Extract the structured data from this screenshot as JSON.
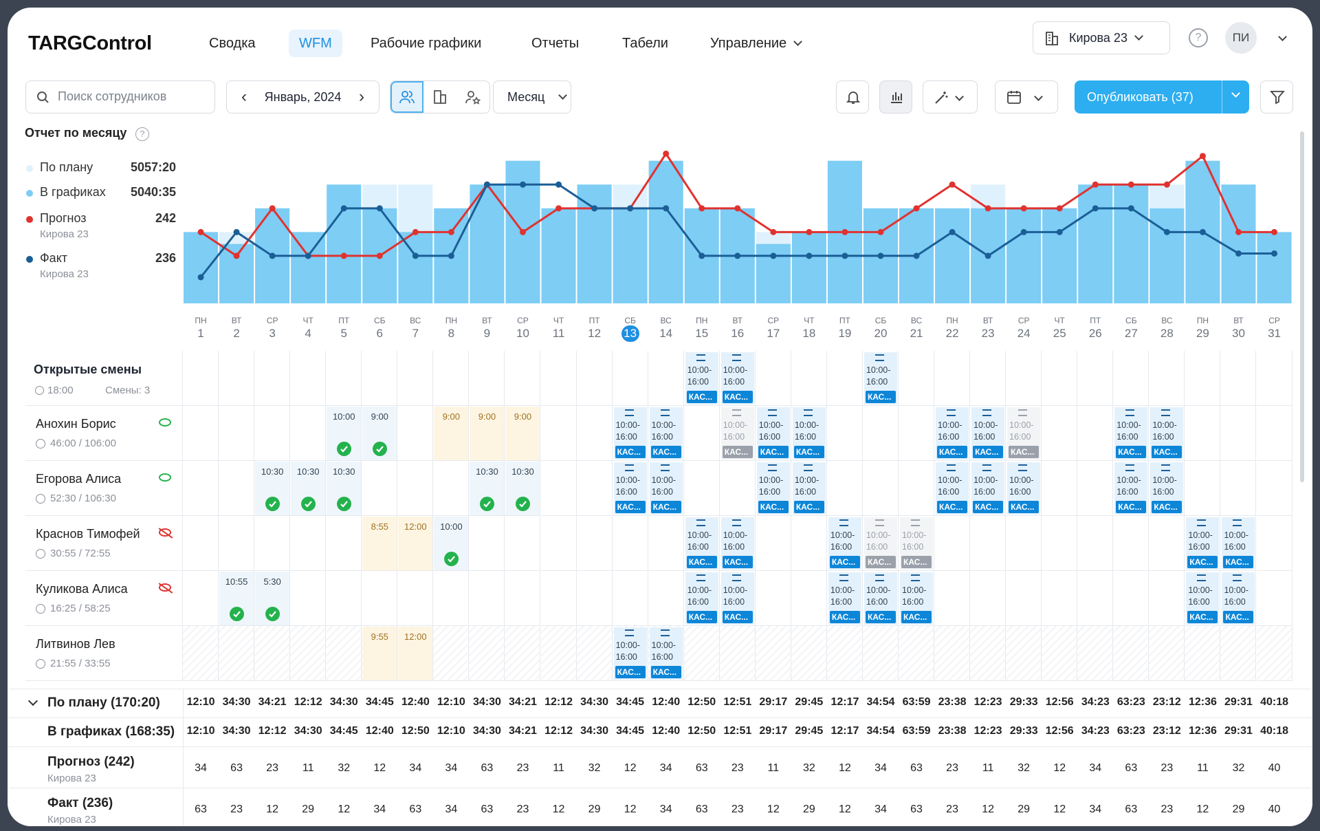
{
  "brand": "TARGControl",
  "nav": [
    "Сводка",
    "WFM",
    "Рабочие графики",
    "Отчеты",
    "Табели",
    "Управление"
  ],
  "store": "Кирова 23",
  "avatar": "ПИ",
  "search": {
    "placeholder": "Поиск сотрудников"
  },
  "month": "Январь, 2024",
  "period": "Месяц",
  "publish": "Опубликовать (37)",
  "legend": {
    "title": "Отчет по месяцу",
    "plan_label": "По плану",
    "plan_value": "5057:20",
    "sched_label": "В графиках",
    "sched_value": "5040:35",
    "forecast_label": "Прогноз",
    "forecast_value": "242",
    "forecast_sub": "Кирова 23",
    "fact_label": "Факт",
    "fact_value": "236",
    "fact_sub": "Кирова 23"
  },
  "colors": {
    "accent": "#2daef0",
    "forecast": "#e0322f",
    "fact": "#1b5e96",
    "bar": "#7dcdf5",
    "bar_light": "#dff1fc"
  },
  "chart_data": {
    "type": "bar",
    "x": [
      1,
      2,
      3,
      4,
      5,
      6,
      7,
      8,
      9,
      10,
      11,
      12,
      13,
      14,
      15,
      16,
      17,
      18,
      19,
      20,
      21,
      22,
      23,
      24,
      25,
      26,
      27,
      28,
      29,
      30,
      31
    ],
    "series": [
      {
        "name": "По плану",
        "values": [
          30,
          30,
          40,
          30,
          50,
          50,
          50,
          40,
          50,
          60,
          40,
          50,
          50,
          60,
          40,
          40,
          30,
          30,
          60,
          40,
          40,
          40,
          50,
          40,
          40,
          50,
          50,
          50,
          60,
          50,
          30
        ]
      },
      {
        "name": "В графиках",
        "values": [
          30,
          25,
          40,
          30,
          50,
          40,
          30,
          40,
          50,
          60,
          40,
          50,
          40,
          60,
          40,
          40,
          25,
          30,
          60,
          40,
          40,
          40,
          40,
          40,
          40,
          50,
          50,
          40,
          60,
          50,
          30
        ]
      },
      {
        "name": "Прогноз",
        "values": [
          30,
          20,
          40,
          20,
          20,
          20,
          30,
          30,
          50,
          30,
          40,
          40,
          40,
          63,
          40,
          40,
          30,
          30,
          30,
          30,
          40,
          50,
          40,
          40,
          40,
          50,
          50,
          50,
          62,
          30,
          30
        ]
      },
      {
        "name": "Факт",
        "values": [
          11,
          30,
          20,
          20,
          40,
          40,
          20,
          20,
          50,
          50,
          50,
          40,
          40,
          40,
          20,
          20,
          20,
          20,
          20,
          20,
          20,
          30,
          20,
          30,
          30,
          40,
          40,
          30,
          30,
          21,
          21
        ]
      }
    ]
  },
  "days": [
    [
      "ПН",
      "1"
    ],
    [
      "ВТ",
      "2"
    ],
    [
      "СР",
      "3"
    ],
    [
      "ЧТ",
      "4"
    ],
    [
      "ПТ",
      "5"
    ],
    [
      "СБ",
      "6"
    ],
    [
      "ВС",
      "7"
    ],
    [
      "ПН",
      "8"
    ],
    [
      "ВТ",
      "9"
    ],
    [
      "СР",
      "10"
    ],
    [
      "ЧТ",
      "11"
    ],
    [
      "ПТ",
      "12"
    ],
    [
      "СБ",
      "13"
    ],
    [
      "ВС",
      "14"
    ],
    [
      "ПН",
      "15"
    ],
    [
      "ВТ",
      "16"
    ],
    [
      "СР",
      "17"
    ],
    [
      "ЧТ",
      "18"
    ],
    [
      "ПТ",
      "19"
    ],
    [
      "СБ",
      "20"
    ],
    [
      "ВС",
      "21"
    ],
    [
      "ПН",
      "22"
    ],
    [
      "ВТ",
      "23"
    ],
    [
      "СР",
      "24"
    ],
    [
      "ЧТ",
      "25"
    ],
    [
      "ПТ",
      "26"
    ],
    [
      "СБ",
      "27"
    ],
    [
      "ВС",
      "28"
    ],
    [
      "ПН",
      "29"
    ],
    [
      "ВТ",
      "30"
    ],
    [
      "СР",
      "31"
    ]
  ],
  "today": 13,
  "open_shifts": {
    "title": "Открытые смены",
    "time": "18:00",
    "count": "Смены: 3"
  },
  "shift_time": "10:00-\n16:00",
  "shift_tag": "КАС...",
  "employees": [
    {
      "name": "Анохин Борис",
      "hours": "46:00 / 106:00",
      "eye": "on"
    },
    {
      "name": "Егорова Алиса",
      "hours": "52:30 / 106:30",
      "eye": "on"
    },
    {
      "name": "Краснов Тимофей",
      "hours": "30:55 / 72:55",
      "eye": "off"
    },
    {
      "name": "Куликова Алиса",
      "hours": "16:25 / 58:25",
      "eye": "off"
    },
    {
      "name": "Литвинов Лев",
      "hours": "21:55 / 33:55",
      "eye": "none"
    }
  ],
  "top_times": [
    {
      "row": 0,
      "day": 5,
      "t": "10:00",
      "check": true
    },
    {
      "row": 0,
      "day": 6,
      "t": "9:00",
      "check": true
    },
    {
      "row": 0,
      "day": 8,
      "t": "9:00",
      "y": true
    },
    {
      "row": 0,
      "day": 9,
      "t": "9:00",
      "y": true
    },
    {
      "row": 0,
      "day": 10,
      "t": "9:00",
      "y": true
    },
    {
      "row": 1,
      "day": 3,
      "t": "10:30",
      "check": true
    },
    {
      "row": 1,
      "day": 4,
      "t": "10:30",
      "check": true
    },
    {
      "row": 1,
      "day": 5,
      "t": "10:30",
      "check": true
    },
    {
      "row": 1,
      "day": 9,
      "t": "10:30",
      "check": true
    },
    {
      "row": 1,
      "day": 10,
      "t": "10:30",
      "check": true
    },
    {
      "row": 2,
      "day": 6,
      "t": "8:55",
      "y": true
    },
    {
      "row": 2,
      "day": 7,
      "t": "12:00",
      "y": true
    },
    {
      "row": 2,
      "day": 8,
      "t": "10:00",
      "check": true
    },
    {
      "row": 3,
      "day": 2,
      "t": "10:55",
      "check": true
    },
    {
      "row": 3,
      "day": 3,
      "t": "5:30",
      "check": true
    },
    {
      "row": 4,
      "day": 6,
      "t": "9:55",
      "y": true
    },
    {
      "row": 4,
      "day": 7,
      "t": "12:00",
      "y": true
    }
  ],
  "shifts": [
    {
      "row": -1,
      "days": [
        15,
        16,
        20
      ]
    },
    {
      "row": 0,
      "days": [
        13,
        14,
        17,
        18,
        22,
        23,
        27,
        28
      ],
      "gray": [
        16,
        24
      ]
    },
    {
      "row": 1,
      "days": [
        13,
        14,
        17,
        18,
        22,
        23,
        24,
        27,
        28
      ]
    },
    {
      "row": 2,
      "days": [
        15,
        16,
        19,
        29,
        30
      ],
      "gray": [
        20,
        21
      ]
    },
    {
      "row": 3,
      "days": [
        15,
        16,
        19,
        20,
        21,
        29,
        30
      ]
    },
    {
      "row": 4,
      "days": [
        13,
        14
      ]
    }
  ],
  "totals": {
    "plan_label": "По плану (170:20)",
    "plan": [
      "12:10",
      "34:30",
      "34:21",
      "12:12",
      "34:30",
      "34:45",
      "12:40",
      "12:10",
      "34:30",
      "34:21",
      "12:12",
      "34:30",
      "34:45",
      "12:40",
      "12:50",
      "12:51",
      "29:17",
      "29:45",
      "12:17",
      "34:54",
      "63:59",
      "23:38",
      "12:23",
      "29:33",
      "12:56",
      "34:23",
      "63:23",
      "23:12",
      "12:36",
      "29:31",
      "40:18"
    ],
    "sched_label": "В графиках (168:35)",
    "sched": [
      "12:10",
      "34:30",
      "12:12",
      "34:30",
      "34:45",
      "12:40",
      "12:50",
      "12:10",
      "34:30",
      "34:21",
      "12:12",
      "34:30",
      "34:45",
      "12:40",
      "12:50",
      "12:51",
      "29:17",
      "29:45",
      "12:17",
      "34:54",
      "63:59",
      "23:38",
      "12:23",
      "29:33",
      "12:56",
      "34:23",
      "63:23",
      "23:12",
      "12:36",
      "29:31",
      "40:18"
    ],
    "forecast_label": "Прогноз (242)",
    "forecast_sub": "Кирова 23",
    "forecast": [
      "34",
      "63",
      "23",
      "11",
      "32",
      "12",
      "34",
      "34",
      "63",
      "23",
      "11",
      "32",
      "12",
      "34",
      "63",
      "23",
      "11",
      "32",
      "12",
      "34",
      "63",
      "23",
      "11",
      "32",
      "12",
      "34",
      "63",
      "23",
      "11",
      "32",
      "40"
    ],
    "fact_label": "Факт (236)",
    "fact_sub": "Кирова 23",
    "fact": [
      "63",
      "23",
      "12",
      "29",
      "12",
      "34",
      "63",
      "34",
      "63",
      "23",
      "12",
      "29",
      "12",
      "34",
      "63",
      "23",
      "12",
      "29",
      "12",
      "34",
      "63",
      "23",
      "12",
      "29",
      "12",
      "34",
      "63",
      "23",
      "12",
      "29",
      "40"
    ]
  }
}
